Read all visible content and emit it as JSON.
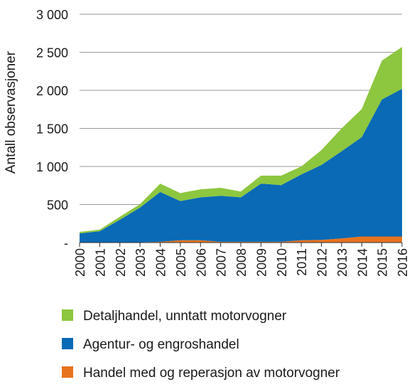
{
  "chart_data": {
    "type": "area",
    "stacked": true,
    "ylabel": "Antall observasjoner",
    "xlabel": "",
    "ylim": [
      0,
      3000
    ],
    "y_ticks": [
      0,
      500,
      1000,
      1500,
      2000,
      2500,
      3000
    ],
    "y_tick_labels": [
      "-",
      "500",
      "1 000",
      "1 500",
      "2 000",
      "2 500",
      "3 000"
    ],
    "x": [
      "2000",
      "2001",
      "2002",
      "2003",
      "2004",
      "2005",
      "2006",
      "2007",
      "2008",
      "2009",
      "2010",
      "2011",
      "2012",
      "2013",
      "2014",
      "2015",
      "2016"
    ],
    "grid": "horizontal",
    "legend_position": "bottom",
    "series": [
      {
        "name": "Handel med og reperasjon av motorvogner",
        "color": "#e8731e",
        "values": [
          5,
          5,
          5,
          5,
          10,
          30,
          30,
          10,
          10,
          10,
          10,
          30,
          35,
          55,
          80,
          80,
          80
        ]
      },
      {
        "name": "Agentur- og engroshandel",
        "color": "#0a6ab5",
        "values": [
          115,
          145,
          295,
          455,
          655,
          515,
          565,
          605,
          585,
          765,
          745,
          865,
          985,
          1145,
          1305,
          1800,
          1940
        ]
      },
      {
        "name": "Detaljhandel, unntatt motorvogner",
        "color": "#8dc63f",
        "values": [
          20,
          20,
          40,
          45,
          110,
          105,
          105,
          105,
          75,
          105,
          125,
          105,
          195,
          300,
          370,
          510,
          550
        ]
      }
    ]
  }
}
